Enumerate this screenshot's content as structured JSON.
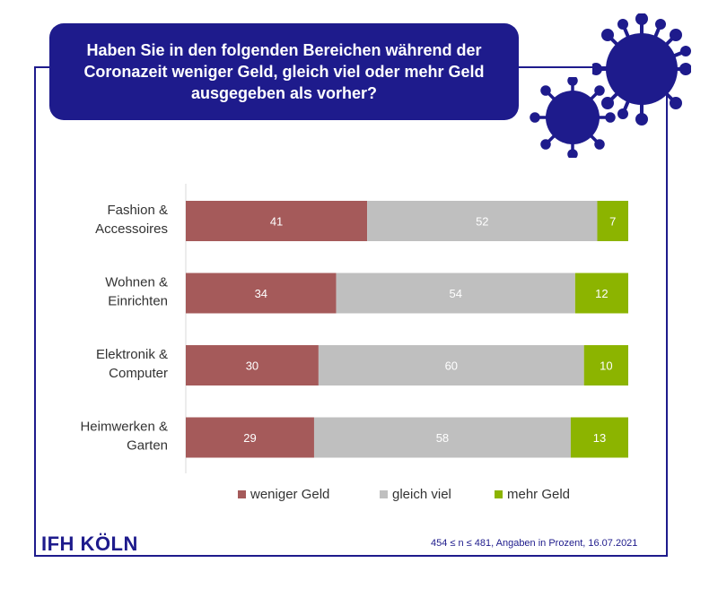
{
  "title": "Haben Sie in den folgenden Bereichen während der Coronazeit weniger Geld, gleich viel oder mehr Geld ausgegeben als vorher?",
  "logo": "IFH KÖLN",
  "footnote": "454 ≤ n ≤ 481,  Angaben in Prozent, 16.07.2021",
  "colors": {
    "accent": "#1e1b8c",
    "weniger": "#a55a5a",
    "gleich": "#bfbfbf",
    "mehr": "#8cb400"
  },
  "chart_data": {
    "type": "bar",
    "orientation": "horizontal",
    "stacked": true,
    "categories": [
      [
        "Fashion &",
        "Accessoires"
      ],
      [
        "Wohnen &",
        "Einrichten"
      ],
      [
        "Elektronik &",
        "Computer"
      ],
      [
        "Heimwerken &",
        "Garten"
      ]
    ],
    "series": [
      {
        "name": "weniger Geld",
        "values": [
          41,
          34,
          30,
          29
        ]
      },
      {
        "name": "gleich viel",
        "values": [
          52,
          54,
          60,
          58
        ]
      },
      {
        "name": "mehr Geld",
        "values": [
          7,
          12,
          10,
          13
        ]
      }
    ],
    "xlim": [
      0,
      100
    ],
    "legend": "bottom"
  }
}
